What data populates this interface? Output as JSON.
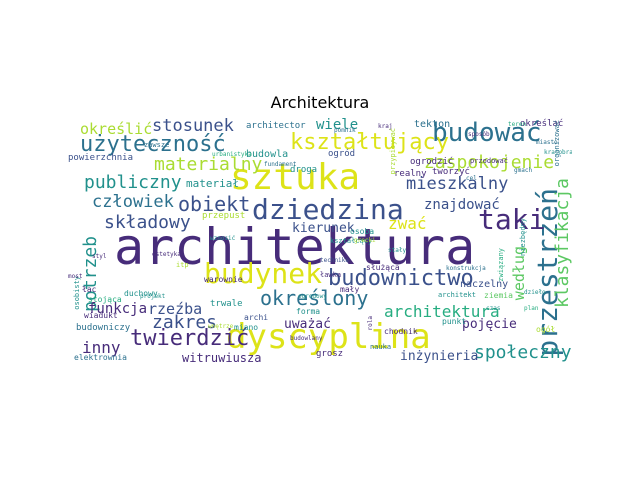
{
  "title": "Architektura",
  "colors": {
    "dark_purple": "#472c7a",
    "purple": "#3b518b",
    "blue": "#2c718e",
    "teal": "#21918c",
    "green": "#27ad81",
    "light_green": "#5cc863",
    "yellow_green": "#aadc32",
    "yellow": "#dde318"
  },
  "words": [
    {
      "text": "architektura",
      "color": "dark_purple"
    },
    {
      "text": "sztuka",
      "color": "yellow"
    },
    {
      "text": "dyscyplina",
      "color": "yellow"
    },
    {
      "text": "dziedzina",
      "color": "purple"
    },
    {
      "text": "budynek",
      "color": "yellow"
    },
    {
      "text": "budować",
      "color": "blue"
    },
    {
      "text": "użyteczność",
      "color": "blue"
    },
    {
      "text": "kształtujący",
      "color": "yellow"
    },
    {
      "text": "budownictwo",
      "color": "purple"
    },
    {
      "text": "przestrzeń",
      "color": "blue"
    },
    {
      "text": "klasyfikacja",
      "color": "light_green"
    },
    {
      "text": "taki",
      "color": "dark_purple"
    },
    {
      "text": "twierdzić",
      "color": "dark_purple"
    },
    {
      "text": "zakres",
      "color": "purple"
    },
    {
      "text": "określony",
      "color": "blue"
    },
    {
      "text": "składowy",
      "color": "purple"
    },
    {
      "text": "obiekt",
      "color": "purple"
    },
    {
      "text": "zaspokojenie",
      "color": "yellow_green"
    },
    {
      "text": "mieszkalny",
      "color": "purple"
    },
    {
      "text": "publiczny",
      "color": "teal"
    },
    {
      "text": "materialny",
      "color": "yellow_green"
    },
    {
      "text": "społeczny",
      "color": "teal"
    },
    {
      "text": "stosunek",
      "color": "purple"
    },
    {
      "text": "potrzeb",
      "color": "teal"
    },
    {
      "text": "człowiek",
      "color": "blue"
    },
    {
      "text": "rzeźba",
      "color": "purple"
    },
    {
      "text": "inny",
      "color": "dark_purple"
    },
    {
      "text": "architektura",
      "color": "green"
    },
    {
      "text": "według",
      "color": "light_green"
    },
    {
      "text": "określić",
      "color": "yellow_green"
    },
    {
      "text": "zwać",
      "color": "yellow"
    },
    {
      "text": "wiele",
      "color": "teal"
    },
    {
      "text": "znajdować",
      "color": "purple"
    },
    {
      "text": "funkcja",
      "color": "dark_purple"
    },
    {
      "text": "kierunek",
      "color": "purple"
    },
    {
      "text": "uważać",
      "color": "dark_purple"
    },
    {
      "text": "pojęcie",
      "color": "dark_purple"
    },
    {
      "text": "inżynieria",
      "color": "purple"
    },
    {
      "text": "witruwiusza",
      "color": "dark_purple"
    },
    {
      "text": "materiał",
      "color": "teal"
    },
    {
      "text": "budowla",
      "color": "teal"
    },
    {
      "text": "tekton",
      "color": "blue"
    },
    {
      "text": "architector",
      "color": "blue"
    },
    {
      "text": "ogród",
      "color": "purple"
    },
    {
      "text": "ogrodzić",
      "color": "dark_purple"
    },
    {
      "text": "realny",
      "color": "dark_purple"
    },
    {
      "text": "droga",
      "color": "teal"
    },
    {
      "text": "przepust",
      "color": "yellow_green"
    },
    {
      "text": "określać",
      "color": "dark_purple"
    },
    {
      "text": "tworzyć",
      "color": "dark_purple"
    },
    {
      "text": "powierzchnia",
      "color": "purple"
    },
    {
      "text": "trwale",
      "color": "teal"
    },
    {
      "text": "budowniczy",
      "color": "blue"
    },
    {
      "text": "naczelny",
      "color": "purple"
    },
    {
      "text": "ziemia",
      "color": "light_green"
    },
    {
      "text": "punkt",
      "color": "teal"
    },
    {
      "text": "ogół",
      "color": "yellow_green"
    },
    {
      "text": "grosz",
      "color": "dark_purple"
    },
    {
      "text": "forma",
      "color": "teal"
    },
    {
      "text": "archi",
      "color": "purple"
    },
    {
      "text": "miano",
      "color": "teal"
    },
    {
      "text": "elektrownia",
      "color": "blue"
    },
    {
      "text": "wiadukt",
      "color": "dark_purple"
    },
    {
      "text": "duchowy",
      "color": "teal"
    },
    {
      "text": "stojąca",
      "color": "green"
    },
    {
      "text": "łac",
      "color": "dark_purple"
    },
    {
      "text": "mały",
      "color": "dark_purple"
    },
    {
      "text": "służąca",
      "color": "dark_purple"
    },
    {
      "text": "warownie",
      "color": "dark_purple"
    },
    {
      "text": "ławka",
      "color": "dark_purple"
    },
    {
      "text": "osoba",
      "color": "teal"
    },
    {
      "text": "chodnik",
      "color": "dark_purple"
    },
    {
      "text": "osobisty",
      "color": "teal"
    },
    {
      "text": "architekt",
      "color": "teal"
    },
    {
      "text": "związany",
      "color": "green"
    },
    {
      "text": "niezbędny",
      "color": "teal"
    },
    {
      "text": "itp",
      "color": "yellow_green"
    },
    {
      "text": "zawsze",
      "color": "blue"
    },
    {
      "text": "kształcący",
      "color": "teal"
    },
    {
      "text": "organizować",
      "color": "blue"
    },
    {
      "text": "przypisywać",
      "color": "yellow_green"
    },
    {
      "text": "przodować",
      "color": "dark_purple"
    },
    {
      "text": "nauka",
      "color": "blue"
    },
    {
      "text": "sposób",
      "color": "dark_purple"
    },
    {
      "text": "ogrodowy",
      "color": "teal"
    },
    {
      "text": "wznosić",
      "color": "teal"
    },
    {
      "text": "rola",
      "color": "dark_purple"
    },
    {
      "text": "cel",
      "color": "blue"
    },
    {
      "text": "budowlany",
      "color": "dark_purple"
    },
    {
      "text": "fundament",
      "color": "blue"
    },
    {
      "text": "stały",
      "color": "teal"
    },
    {
      "text": "kraj",
      "color": "dark_purple"
    },
    {
      "text": "gmach",
      "color": "blue"
    },
    {
      "text": "plan",
      "color": "green"
    },
    {
      "text": "czas",
      "color": "teal"
    },
    {
      "text": "wnętrze",
      "color": "yellow_green"
    },
    {
      "text": "pomnik",
      "color": "blue"
    },
    {
      "text": "most",
      "color": "dark_purple"
    },
    {
      "text": "projekt",
      "color": "teal"
    },
    {
      "text": "teren",
      "color": "green"
    },
    {
      "text": "miasto",
      "color": "blue"
    },
    {
      "text": "styl",
      "color": "dark_purple"
    },
    {
      "text": "dzieło",
      "color": "teal"
    },
    {
      "text": "technika",
      "color": "purple"
    },
    {
      "text": "krajobraz",
      "color": "teal"
    },
    {
      "text": "urbanistyka",
      "color": "green"
    },
    {
      "text": "konstrukcja",
      "color": "blue"
    },
    {
      "text": "estetyka",
      "color": "dark_purple"
    },
    {
      "text": "grecki",
      "color": "yellow_green"
    }
  ]
}
